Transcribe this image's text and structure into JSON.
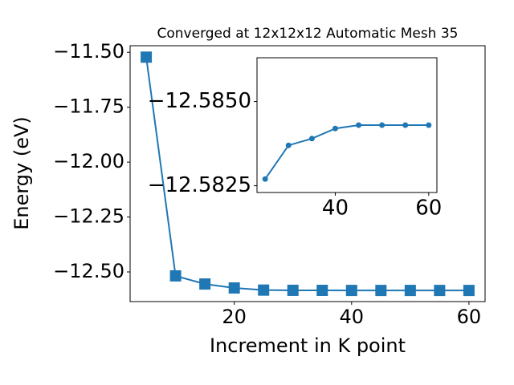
{
  "chart_data": [
    {
      "type": "line",
      "title": "Converged at 12x12x12 Automatic Mesh 35",
      "x_label": "Increment in K point",
      "y_label": "Energy (eV)",
      "x": [
        5,
        10,
        15,
        20,
        25,
        30,
        35,
        40,
        45,
        50,
        55,
        60
      ],
      "series": [
        {
          "color": "#1f77b4",
          "marker": "square",
          "values": [
            -11.522,
            -12.518,
            -12.555,
            -12.573,
            -12.5827,
            -12.5837,
            -12.5839,
            -12.5842,
            -12.5843,
            -12.5843,
            -12.5843,
            -12.5843
          ]
        }
      ],
      "xlim": [
        2.25,
        62.75
      ],
      "ylim": [
        -12.635,
        -11.47
      ],
      "xticks": [
        20,
        40,
        60
      ],
      "yticks": [
        {
          "value": -11.5,
          "label": "−11.50"
        },
        {
          "value": -11.75,
          "label": "−11.75"
        },
        {
          "value": -12.0,
          "label": "−12.00"
        },
        {
          "value": -12.25,
          "label": "−12.25"
        },
        {
          "value": -12.5,
          "label": "−12.50"
        }
      ]
    },
    {
      "type": "line",
      "x": [
        25,
        30,
        35,
        40,
        45,
        50,
        55,
        60
      ],
      "series": [
        {
          "color": "#1f77b4",
          "marker": "circle",
          "values": [
            -12.5827,
            -12.5837,
            -12.5839,
            -12.5842,
            -12.5843,
            -12.5843,
            -12.5843,
            -12.5843
          ]
        }
      ],
      "xlim": [
        23.25,
        61.75
      ],
      "ylim": [
        -12.5823,
        -12.5863
      ],
      "xticks": [
        40,
        60
      ],
      "yticks": [
        {
          "value": -12.585,
          "label": "−12.5850"
        },
        {
          "value": -12.5825,
          "label": "−12.5825"
        }
      ]
    }
  ]
}
